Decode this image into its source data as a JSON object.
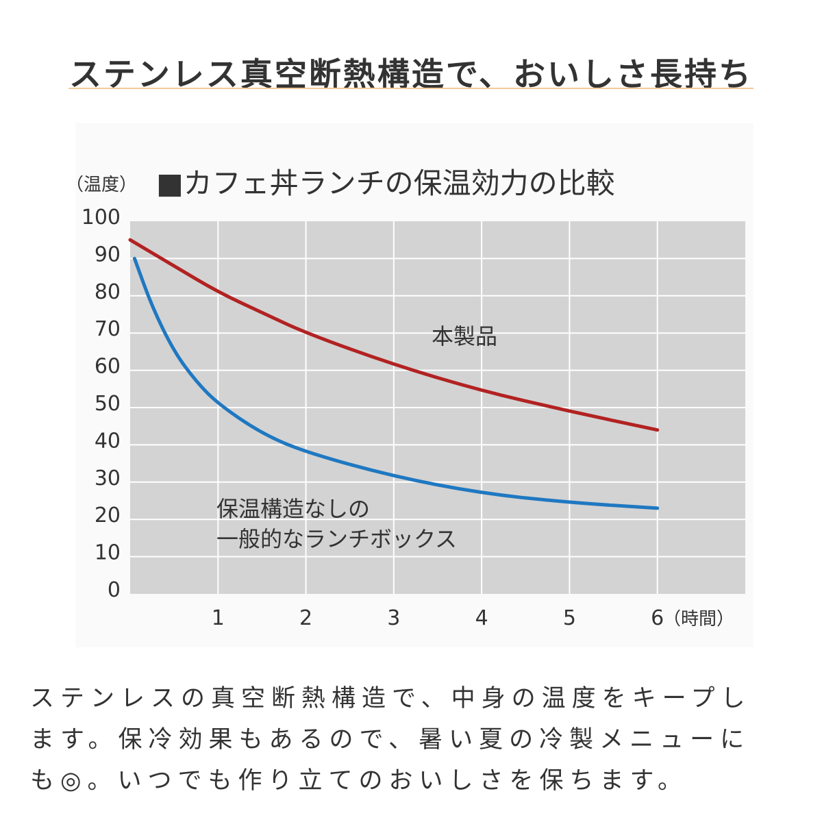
{
  "header": {
    "title": "ステンレス真空断熱構造で、おいしさ長持ち"
  },
  "chart_data": {
    "type": "line",
    "title": "■カフェ丼ランチの保温効力の比較",
    "ylabel": "（温度）",
    "xlabel": "（時間）",
    "ylim": [
      0,
      100
    ],
    "xlim": [
      0,
      7
    ],
    "yticks": [
      0,
      10,
      20,
      30,
      40,
      50,
      60,
      70,
      80,
      90,
      100
    ],
    "xticks": [
      1,
      2,
      3,
      4,
      5,
      6
    ],
    "grid": true,
    "series": [
      {
        "name": "本製品",
        "color": "#b22222",
        "label_lines": [
          "本製品"
        ],
        "x": [
          0,
          0.5,
          1,
          1.5,
          2,
          3,
          4,
          5,
          6
        ],
        "y": [
          95,
          88,
          81,
          75.5,
          70,
          61.5,
          54.5,
          49,
          44
        ]
      },
      {
        "name": "保温構造なしの一般的なランチボックス",
        "color": "#1f78c1",
        "label_lines": [
          "保温構造なしの",
          "一般的なランチボックス"
        ],
        "x": [
          0.05,
          0.25,
          0.5,
          0.75,
          1,
          1.5,
          2,
          3,
          4,
          5,
          6
        ],
        "y": [
          90,
          77,
          65,
          57,
          51,
          43,
          38,
          31.5,
          27,
          24.5,
          23
        ]
      }
    ]
  },
  "description": {
    "lines": [
      "ステンレスの真空断熱構造で、中身の温度をキープし",
      "ます。保冷効果もあるので、暑い夏の冷製メニューに",
      "も◎。いつでも作り立てのおいしさを保ちます。"
    ]
  }
}
